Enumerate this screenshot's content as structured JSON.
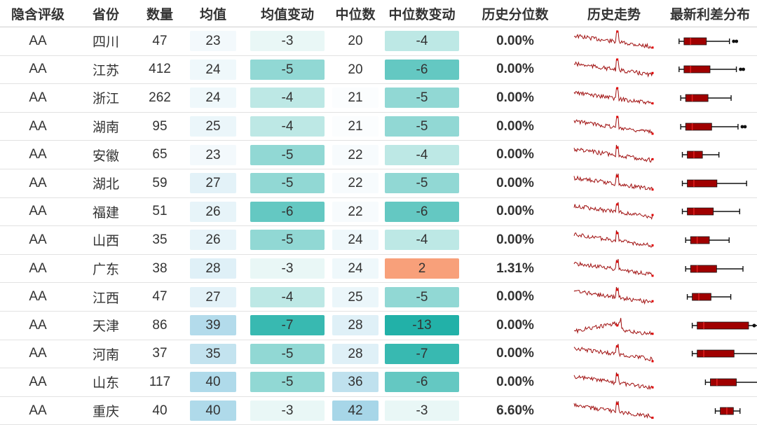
{
  "headers": {
    "rating": "隐含评级",
    "province": "省份",
    "count": "数量",
    "mean": "均值",
    "mean_change": "均值变动",
    "median": "中位数",
    "median_change": "中位数变动",
    "hist_pct": "历史分位数",
    "hist_trend": "历史走势",
    "spread_dist": "最新利差分布"
  },
  "rows": [
    {
      "rating": "AA",
      "province": "四川",
      "count": "47",
      "mean": "23",
      "mean_change": "-3",
      "median": "20",
      "median_change": "-4",
      "hist_pct": "0.00%"
    },
    {
      "rating": "AA",
      "province": "江苏",
      "count": "412",
      "mean": "24",
      "mean_change": "-5",
      "median": "20",
      "median_change": "-6",
      "hist_pct": "0.00%"
    },
    {
      "rating": "AA",
      "province": "浙江",
      "count": "262",
      "mean": "24",
      "mean_change": "-4",
      "median": "21",
      "median_change": "-5",
      "hist_pct": "0.00%"
    },
    {
      "rating": "AA",
      "province": "湖南",
      "count": "95",
      "mean": "25",
      "mean_change": "-4",
      "median": "21",
      "median_change": "-5",
      "hist_pct": "0.00%"
    },
    {
      "rating": "AA",
      "province": "安徽",
      "count": "65",
      "mean": "23",
      "mean_change": "-5",
      "median": "22",
      "median_change": "-4",
      "hist_pct": "0.00%"
    },
    {
      "rating": "AA",
      "province": "湖北",
      "count": "59",
      "mean": "27",
      "mean_change": "-5",
      "median": "22",
      "median_change": "-5",
      "hist_pct": "0.00%"
    },
    {
      "rating": "AA",
      "province": "福建",
      "count": "51",
      "mean": "26",
      "mean_change": "-6",
      "median": "22",
      "median_change": "-6",
      "hist_pct": "0.00%"
    },
    {
      "rating": "AA",
      "province": "山西",
      "count": "35",
      "mean": "26",
      "mean_change": "-5",
      "median": "24",
      "median_change": "-4",
      "hist_pct": "0.00%"
    },
    {
      "rating": "AA",
      "province": "广东",
      "count": "38",
      "mean": "28",
      "mean_change": "-3",
      "median": "24",
      "median_change": "2",
      "hist_pct": "1.31%"
    },
    {
      "rating": "AA",
      "province": "江西",
      "count": "47",
      "mean": "27",
      "mean_change": "-4",
      "median": "25",
      "median_change": "-5",
      "hist_pct": "0.00%"
    },
    {
      "rating": "AA",
      "province": "天津",
      "count": "86",
      "mean": "39",
      "mean_change": "-7",
      "median": "28",
      "median_change": "-13",
      "hist_pct": "0.00%"
    },
    {
      "rating": "AA",
      "province": "河南",
      "count": "37",
      "mean": "35",
      "mean_change": "-5",
      "median": "28",
      "median_change": "-7",
      "hist_pct": "0.00%"
    },
    {
      "rating": "AA",
      "province": "山东",
      "count": "117",
      "mean": "40",
      "mean_change": "-5",
      "median": "36",
      "median_change": "-6",
      "hist_pct": "0.00%"
    },
    {
      "rating": "AA",
      "province": "重庆",
      "count": "40",
      "mean": "40",
      "mean_change": "-3",
      "median": "42",
      "median_change": "-3",
      "hist_pct": "6.60%"
    }
  ],
  "colors": {
    "spark_line": "#a01010",
    "box_fill": "#a00000",
    "box_median": "#e02020",
    "positive_change": "#f8a07a",
    "teal_base": "#22b1a8"
  }
}
